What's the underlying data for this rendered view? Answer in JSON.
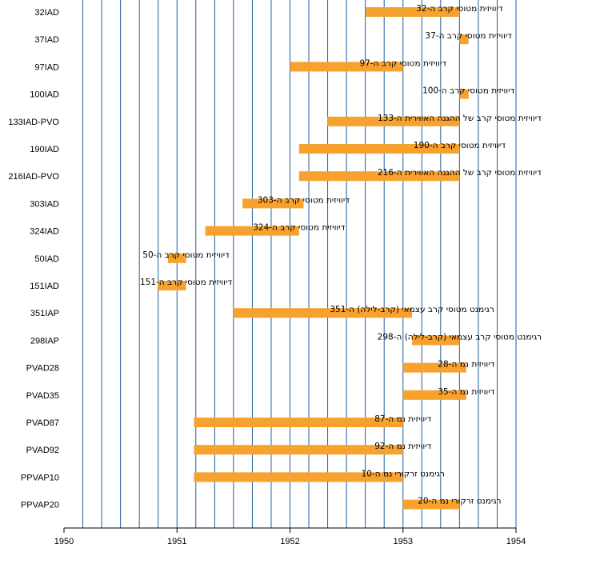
{
  "chart_data": {
    "type": "bar",
    "orientation": "horizontal-range",
    "xlim": [
      1950,
      1954
    ],
    "x_ticks": [
      "1950",
      "1951",
      "1952",
      "1953",
      "1954"
    ],
    "grid": "vertical, every 2 months",
    "bar_color": "#f7a12e",
    "grid_color": "#1f5f9f",
    "rows": [
      {
        "category": "32IAD",
        "start": 1952.67,
        "end": 1953.5,
        "label": "דיוויזית מטוסי קרב ה-32"
      },
      {
        "category": "37IAD",
        "start": 1953.5,
        "end": 1953.58,
        "label": "דיוויזית מטוסי קרב ה-37"
      },
      {
        "category": "97IAD",
        "start": 1952.0,
        "end": 1953.0,
        "label": "דיוויזית מטוסי קרב ה-97"
      },
      {
        "category": "100IAD",
        "start": 1953.5,
        "end": 1953.58,
        "label": "דיוויזית מטוסי קרב ה-100"
      },
      {
        "category": "133IAD-PVO",
        "start": 1952.33,
        "end": 1953.5,
        "label": "דיוויזית מטוסי קרב של ההגנה האווירית ה-133"
      },
      {
        "category": "190IAD",
        "start": 1952.08,
        "end": 1953.5,
        "label": "דיוויזית מטוסי קרב ה-190"
      },
      {
        "category": "216IAD-PVO",
        "start": 1952.08,
        "end": 1953.5,
        "label": "דיוויזית מטוסי קרב של ההגנה האווירית ה-216"
      },
      {
        "category": "303IAD",
        "start": 1951.58,
        "end": 1952.12,
        "label": "דיוויזית מטוסי קרב ה-303"
      },
      {
        "category": "324IAD",
        "start": 1951.25,
        "end": 1952.08,
        "label": "דיוויזית מטוסי קרב ה-324"
      },
      {
        "category": "50IAD",
        "start": 1950.92,
        "end": 1951.08,
        "label": "דיוויזית מטוסי קרב ה-50"
      },
      {
        "category": "151IAD",
        "start": 1950.83,
        "end": 1951.08,
        "label": "דיוויזית מטוסי קרב ה-151"
      },
      {
        "category": "351IAP",
        "start": 1951.5,
        "end": 1953.08,
        "label": "רגימנט מטוסי קרב עצמאי (קרב-לילה) ה-351"
      },
      {
        "category": "298IAP",
        "start": 1953.08,
        "end": 1953.5,
        "label": "רגימנט מטוסי קרב עצמאי (קרב-לילה) ה-298"
      },
      {
        "category": "PVAD28",
        "start": 1953.0,
        "end": 1953.56,
        "label": "דיוויזית נמ ה-28"
      },
      {
        "category": "PVAD35",
        "start": 1953.0,
        "end": 1953.56,
        "label": "דיוויזית נמ ה-35"
      },
      {
        "category": "PVAD87",
        "start": 1951.15,
        "end": 1953.0,
        "label": "דיוויזית נמ ה-87"
      },
      {
        "category": "PVAD92",
        "start": 1951.15,
        "end": 1953.0,
        "label": "דיוויזית נמ ה-92"
      },
      {
        "category": "PPVAP10",
        "start": 1951.15,
        "end": 1953.0,
        "label": "רגימנט זרקורי נמ ה-10"
      },
      {
        "category": "PPVAP20",
        "start": 1953.0,
        "end": 1953.5,
        "label": "רגימנט זרקורי נמ ה-20"
      }
    ]
  }
}
